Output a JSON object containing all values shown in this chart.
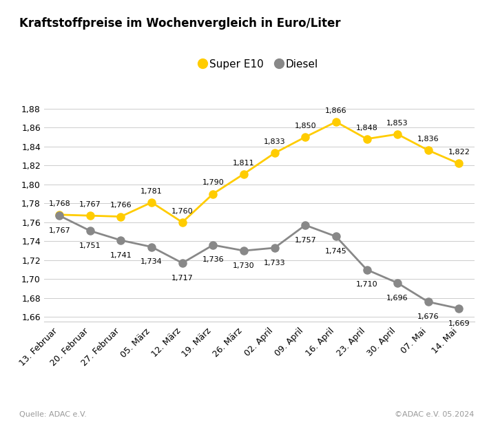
{
  "title": "Kraftstoffpreise im Wochenvergleich in Euro/Liter",
  "x_labels": [
    "13. Februar",
    "20. Februar",
    "27. Februar",
    "05. März",
    "12. März",
    "19. März",
    "26. März",
    "02. April",
    "09. April",
    "16. April",
    "23. April",
    "30. April",
    "07. Mai",
    "14. Mai"
  ],
  "super_e10": [
    1.768,
    1.767,
    1.766,
    1.781,
    1.76,
    1.79,
    1.811,
    1.833,
    1.85,
    1.866,
    1.848,
    1.853,
    1.836,
    1.822
  ],
  "diesel": [
    1.767,
    1.751,
    1.741,
    1.734,
    1.717,
    1.736,
    1.73,
    1.733,
    1.757,
    1.745,
    1.71,
    1.696,
    1.676,
    1.669
  ],
  "super_color": "#FFCC00",
  "diesel_color": "#888888",
  "line_width": 2.0,
  "marker_size": 8,
  "ylim_min": 1.655,
  "ylim_max": 1.895,
  "yticks_display": [
    1.66,
    1.68,
    1.7,
    1.72,
    1.74,
    1.76,
    1.78,
    1.8,
    1.82,
    1.84,
    1.86,
    1.88
  ],
  "source_left": "Quelle: ADAC e.V.",
  "source_right": "©ADAC e.V. 05.2024",
  "legend_super": "Super E10",
  "legend_diesel": "Diesel",
  "background_color": "#ffffff",
  "grid_color": "#cccccc",
  "tick_label_fontsize": 9,
  "title_fontsize": 12,
  "annotation_fontsize": 8,
  "legend_fontsize": 11,
  "source_fontsize": 8,
  "source_color": "#999999"
}
